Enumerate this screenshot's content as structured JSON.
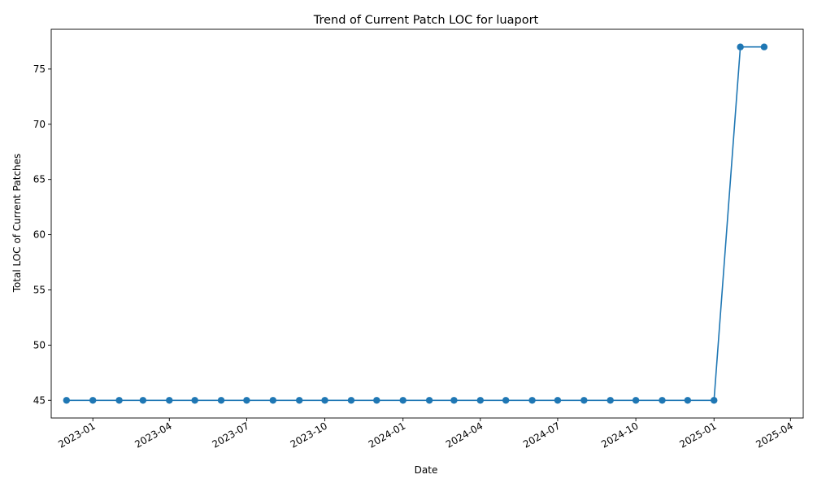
{
  "chart_data": {
    "type": "line",
    "title": "Trend of Current Patch LOC for luaport",
    "xlabel": "Date",
    "ylabel": "Total LOC of Current Patches",
    "xlim": [
      "2022-11-13",
      "2025-04-16"
    ],
    "ylim": [
      43.4,
      78.6
    ],
    "x_ticks": [
      "2023-01",
      "2023-04",
      "2023-07",
      "2023-10",
      "2024-01",
      "2024-04",
      "2024-07",
      "2024-10",
      "2025-01",
      "2025-04"
    ],
    "y_ticks": [
      45,
      50,
      55,
      60,
      65,
      70,
      75
    ],
    "grid": false,
    "legend": "none",
    "series": [
      {
        "color": "#1f77b4",
        "marker": "circle",
        "x": [
          "2022-12-01",
          "2023-01-01",
          "2023-02-01",
          "2023-03-01",
          "2023-04-01",
          "2023-05-01",
          "2023-06-01",
          "2023-07-01",
          "2023-08-01",
          "2023-09-01",
          "2023-10-01",
          "2023-11-01",
          "2023-12-01",
          "2024-01-01",
          "2024-02-01",
          "2024-03-01",
          "2024-04-01",
          "2024-05-01",
          "2024-06-01",
          "2024-07-01",
          "2024-08-01",
          "2024-09-01",
          "2024-10-01",
          "2024-11-01",
          "2024-12-01",
          "2025-01-01",
          "2025-02-01",
          "2025-03-01"
        ],
        "values": [
          45,
          45,
          45,
          45,
          45,
          45,
          45,
          45,
          45,
          45,
          45,
          45,
          45,
          45,
          45,
          45,
          45,
          45,
          45,
          45,
          45,
          45,
          45,
          45,
          45,
          45,
          77,
          77
        ]
      }
    ]
  }
}
